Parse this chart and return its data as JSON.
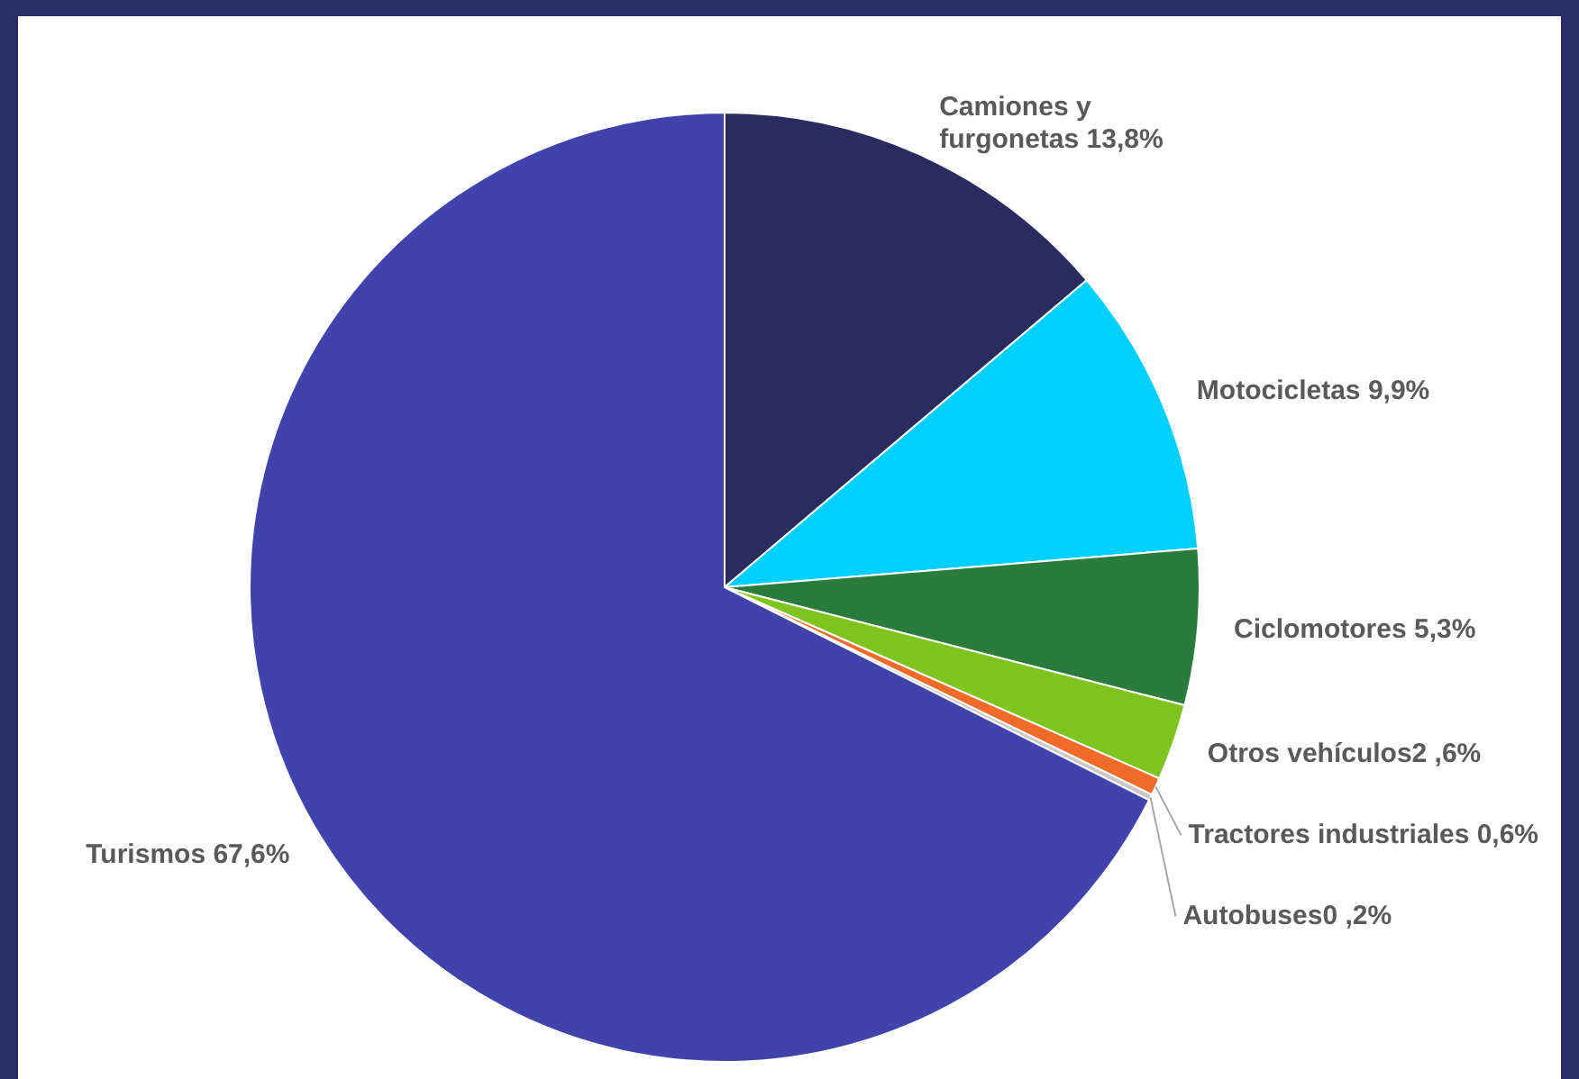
{
  "chart_data": {
    "type": "pie",
    "categories": [
      "Camiones y furgonetas",
      "Motocicletas",
      "Ciclomotores",
      "Otros vehículos2 ,6%",
      "Tractores industriales",
      "Autobuses0 ,2%",
      "Turismos"
    ],
    "values": [
      13.8,
      9.9,
      5.3,
      2.6,
      0.6,
      0.2,
      67.6
    ],
    "colors": [
      "#2b2b60",
      "#00d0ff",
      "#2a7b3c",
      "#7ec41e",
      "#f06a2a",
      "#c8c8c8",
      "#4143ad"
    ],
    "value_labels": [
      " 13,8%",
      " 9,9%",
      " 5,3%",
      null,
      " 0,6%",
      null,
      " 67,6%"
    ],
    "legend": false
  }
}
